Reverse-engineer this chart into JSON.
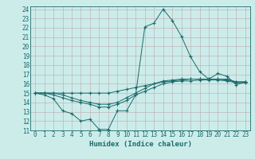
{
  "xlabel": "Humidex (Indice chaleur)",
  "bg_color": "#ccecea",
  "grid_color": "#c0b4b8",
  "line_color": "#1a6b6b",
  "xmin": 0,
  "xmax": 23,
  "ymin": 11,
  "ymax": 24,
  "series": [
    [
      15.0,
      14.8,
      14.4,
      13.1,
      12.8,
      12.0,
      12.2,
      11.1,
      11.1,
      13.1,
      13.1,
      14.8,
      22.1,
      22.5,
      24.0,
      22.8,
      21.1,
      18.9,
      17.3,
      16.5,
      17.1,
      16.8,
      15.9,
      16.2
    ],
    [
      15.0,
      15.0,
      15.0,
      15.0,
      15.0,
      15.0,
      15.0,
      15.0,
      15.0,
      15.2,
      15.4,
      15.6,
      15.8,
      16.0,
      16.2,
      16.3,
      16.4,
      16.5,
      16.5,
      16.5,
      16.5,
      16.5,
      16.2,
      16.2
    ],
    [
      15.0,
      15.0,
      15.0,
      14.8,
      14.5,
      14.2,
      14.0,
      13.8,
      13.8,
      14.0,
      14.5,
      15.0,
      15.5,
      16.0,
      16.3,
      16.4,
      16.5,
      16.5,
      16.5,
      16.5,
      16.5,
      16.4,
      16.2,
      16.2
    ],
    [
      15.0,
      15.0,
      14.8,
      14.5,
      14.2,
      14.0,
      13.8,
      13.5,
      13.5,
      13.8,
      14.2,
      14.8,
      15.2,
      15.6,
      16.0,
      16.2,
      16.3,
      16.3,
      16.4,
      16.4,
      16.4,
      16.3,
      16.1,
      16.1
    ]
  ],
  "tick_fontsize": 5.5,
  "xlabel_fontsize": 6.5
}
